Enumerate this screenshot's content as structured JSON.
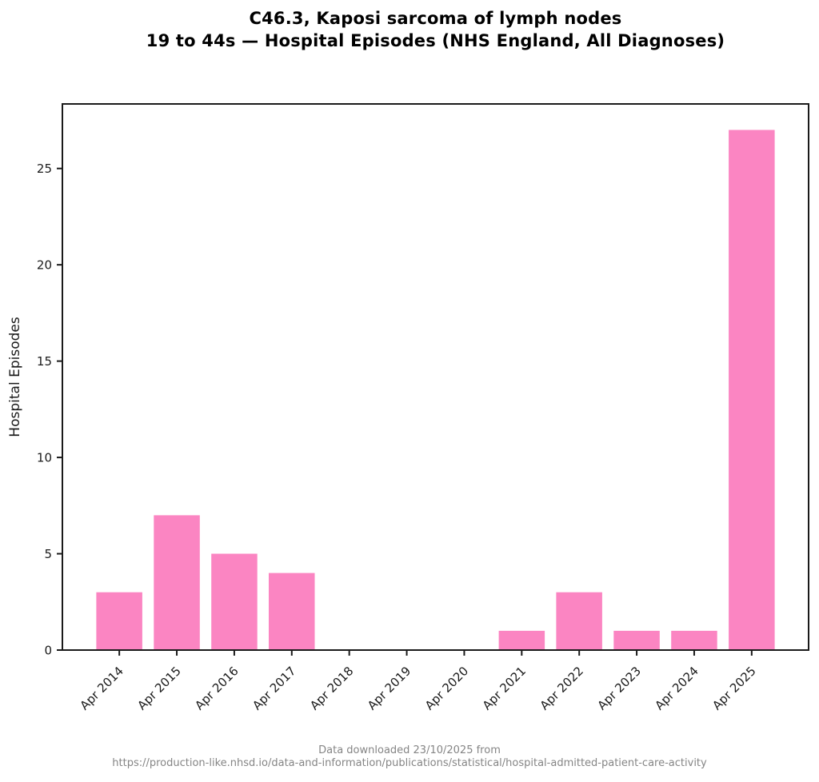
{
  "chart_data": {
    "type": "bar",
    "title_lines": [
      "C46.3, Kaposi sarcoma of lymph nodes",
      "19 to 44s — Hospital Episodes (NHS England, All Diagnoses)"
    ],
    "categories": [
      "Apr 2014",
      "Apr 2015",
      "Apr 2016",
      "Apr 2017",
      "Apr 2018",
      "Apr 2019",
      "Apr 2020",
      "Apr 2021",
      "Apr 2022",
      "Apr 2023",
      "Apr 2024",
      "Apr 2025"
    ],
    "values": [
      3,
      7,
      5,
      4,
      0,
      0,
      0,
      1,
      3,
      1,
      1,
      27
    ],
    "xlabel": "",
    "ylabel": "Hospital Episodes",
    "yticks": [
      0,
      5,
      10,
      15,
      20,
      25
    ],
    "ylim": [
      0,
      28.35
    ],
    "bar_color": "#FB85C2",
    "axis_color": "#1a1a1a",
    "grid": false,
    "legend_position": "none"
  },
  "footer": {
    "line1": "Data downloaded 23/10/2025 from",
    "line2": "https://production-like.nhsd.io/data-and-information/publications/statistical/hospital-admitted-patient-care-activity"
  }
}
